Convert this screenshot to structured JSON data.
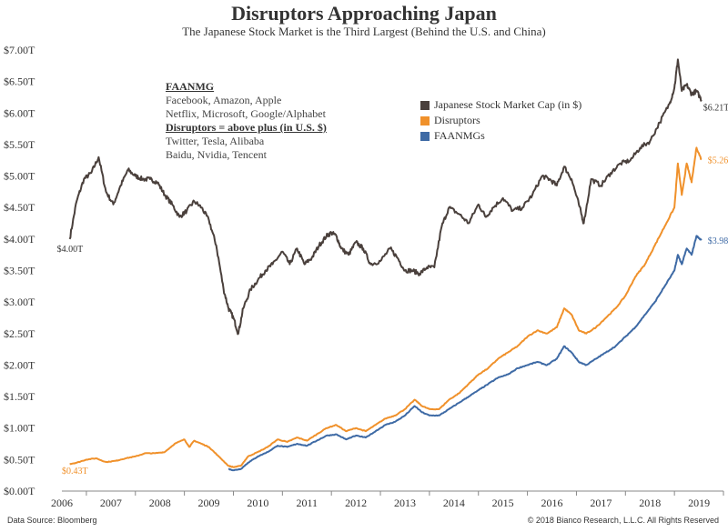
{
  "chart_data": {
    "type": "line",
    "title": "Disruptors Approaching Japan",
    "subtitle": "The Japanese Stock Market is the Third Largest (Behind the U.S. and China)",
    "xlabel": "",
    "ylabel": "",
    "ylim": [
      0,
      7
    ],
    "xlim": [
      2005.5,
      2019
    ],
    "y_ticks": [
      "$0.00T",
      "$0.50T",
      "$1.00T",
      "$1.50T",
      "$2.00T",
      "$2.50T",
      "$3.00T",
      "$3.50T",
      "$4.00T",
      "$4.50T",
      "$5.00T",
      "$5.50T",
      "$6.00T",
      "$6.50T",
      "$7.00T"
    ],
    "x_ticks": [
      "2006",
      "2007",
      "2008",
      "2009",
      "2010",
      "2011",
      "2012",
      "2013",
      "2014",
      "2015",
      "2016",
      "2017",
      "2018",
      "2019"
    ],
    "grid": false,
    "legend_position": "top-right",
    "colors": {
      "japan": "#4a403c",
      "disruptors": "#f0912b",
      "faanmg": "#3e6aa5"
    },
    "series": [
      {
        "name": "Japanese Stock Market Cap (in $)",
        "x": [
          2005.66,
          2005.8,
          2005.95,
          2006.1,
          2006.25,
          2006.4,
          2006.55,
          2006.7,
          2006.85,
          2007.0,
          2007.15,
          2007.3,
          2007.45,
          2007.6,
          2007.75,
          2007.9,
          2008.05,
          2008.2,
          2008.35,
          2008.5,
          2008.65,
          2008.8,
          2008.9,
          2009.0,
          2009.1,
          2009.2,
          2009.35,
          2009.5,
          2009.65,
          2009.8,
          2010.0,
          2010.15,
          2010.3,
          2010.45,
          2010.6,
          2010.75,
          2010.9,
          2011.0,
          2011.1,
          2011.2,
          2011.35,
          2011.5,
          2011.65,
          2011.8,
          2012.0,
          2012.2,
          2012.35,
          2012.5,
          2012.65,
          2012.8,
          2012.95,
          2013.1,
          2013.25,
          2013.4,
          2013.6,
          2013.8,
          2014.0,
          2014.15,
          2014.3,
          2014.5,
          2014.7,
          2014.9,
          2015.1,
          2015.3,
          2015.45,
          2015.6,
          2015.75,
          2015.9,
          2016.05,
          2016.15,
          2016.3,
          2016.5,
          2016.7,
          2016.9,
          2017.1,
          2017.3,
          2017.5,
          2017.7,
          2017.9,
          2018.0,
          2018.07,
          2018.15,
          2018.25,
          2018.35,
          2018.45,
          2018.55
        ],
        "values": [
          4.0,
          4.6,
          4.95,
          5.05,
          5.3,
          4.75,
          4.55,
          4.85,
          5.1,
          5.0,
          4.95,
          4.95,
          4.9,
          4.7,
          4.55,
          4.35,
          4.45,
          4.6,
          4.5,
          4.3,
          3.9,
          3.2,
          2.9,
          2.75,
          2.5,
          2.9,
          3.2,
          3.35,
          3.5,
          3.6,
          3.8,
          3.6,
          3.85,
          3.6,
          3.7,
          3.9,
          4.05,
          4.1,
          4.05,
          3.85,
          3.75,
          3.95,
          3.85,
          3.6,
          3.65,
          3.85,
          3.7,
          3.5,
          3.5,
          3.45,
          3.55,
          3.55,
          4.2,
          4.5,
          4.4,
          4.25,
          4.55,
          4.35,
          4.5,
          4.65,
          4.45,
          4.5,
          4.7,
          5.0,
          4.95,
          4.85,
          5.15,
          4.95,
          4.55,
          4.25,
          4.95,
          4.85,
          5.05,
          5.2,
          5.25,
          5.45,
          5.55,
          5.85,
          6.15,
          6.4,
          6.85,
          6.35,
          6.45,
          6.3,
          6.35,
          6.21
        ]
      },
      {
        "name": "Disruptors",
        "x": [
          2005.66,
          2005.8,
          2006.0,
          2006.2,
          2006.4,
          2006.6,
          2006.8,
          2007.0,
          2007.2,
          2007.4,
          2007.6,
          2007.8,
          2008.0,
          2008.1,
          2008.2,
          2008.35,
          2008.5,
          2008.7,
          2008.9,
          2009.0,
          2009.15,
          2009.3,
          2009.5,
          2009.7,
          2009.9,
          2010.1,
          2010.3,
          2010.5,
          2010.7,
          2010.9,
          2011.1,
          2011.3,
          2011.5,
          2011.7,
          2011.9,
          2012.1,
          2012.3,
          2012.5,
          2012.7,
          2012.85,
          2013.0,
          2013.2,
          2013.4,
          2013.6,
          2013.8,
          2014.0,
          2014.2,
          2014.4,
          2014.6,
          2014.8,
          2015.0,
          2015.2,
          2015.4,
          2015.6,
          2015.75,
          2015.9,
          2016.05,
          2016.2,
          2016.4,
          2016.6,
          2016.8,
          2017.0,
          2017.2,
          2017.4,
          2017.6,
          2017.8,
          2018.0,
          2018.07,
          2018.15,
          2018.25,
          2018.35,
          2018.45,
          2018.55
        ],
        "values": [
          0.43,
          0.45,
          0.5,
          0.52,
          0.46,
          0.48,
          0.52,
          0.55,
          0.6,
          0.6,
          0.62,
          0.75,
          0.82,
          0.7,
          0.8,
          0.75,
          0.7,
          0.55,
          0.4,
          0.38,
          0.4,
          0.55,
          0.62,
          0.7,
          0.82,
          0.78,
          0.85,
          0.8,
          0.9,
          1.0,
          1.05,
          0.95,
          1.0,
          0.95,
          1.05,
          1.15,
          1.2,
          1.3,
          1.45,
          1.35,
          1.3,
          1.3,
          1.45,
          1.55,
          1.7,
          1.85,
          1.95,
          2.1,
          2.2,
          2.3,
          2.45,
          2.55,
          2.5,
          2.6,
          2.9,
          2.8,
          2.55,
          2.5,
          2.6,
          2.75,
          2.9,
          3.1,
          3.4,
          3.6,
          3.9,
          4.2,
          4.5,
          5.2,
          4.7,
          5.2,
          4.9,
          5.45,
          5.26
        ]
      },
      {
        "name": "FAANMGs",
        "x": [
          2008.9,
          2009.0,
          2009.15,
          2009.3,
          2009.5,
          2009.7,
          2009.9,
          2010.1,
          2010.3,
          2010.5,
          2010.7,
          2010.9,
          2011.1,
          2011.3,
          2011.5,
          2011.7,
          2011.9,
          2012.1,
          2012.3,
          2012.5,
          2012.7,
          2012.85,
          2013.0,
          2013.2,
          2013.4,
          2013.6,
          2013.8,
          2014.0,
          2014.2,
          2014.4,
          2014.6,
          2014.8,
          2015.0,
          2015.2,
          2015.4,
          2015.6,
          2015.75,
          2015.9,
          2016.05,
          2016.2,
          2016.4,
          2016.6,
          2016.8,
          2017.0,
          2017.2,
          2017.4,
          2017.6,
          2017.8,
          2018.0,
          2018.07,
          2018.15,
          2018.25,
          2018.35,
          2018.45,
          2018.55
        ],
        "values": [
          0.35,
          0.33,
          0.35,
          0.45,
          0.55,
          0.62,
          0.72,
          0.7,
          0.75,
          0.72,
          0.8,
          0.88,
          0.9,
          0.82,
          0.88,
          0.85,
          0.95,
          1.05,
          1.1,
          1.2,
          1.35,
          1.25,
          1.2,
          1.2,
          1.3,
          1.4,
          1.5,
          1.6,
          1.7,
          1.8,
          1.85,
          1.95,
          2.0,
          2.05,
          2.0,
          2.1,
          2.3,
          2.2,
          2.05,
          2.0,
          2.1,
          2.2,
          2.3,
          2.45,
          2.6,
          2.8,
          3.0,
          3.25,
          3.5,
          3.75,
          3.6,
          3.85,
          3.75,
          4.05,
          3.98
        ]
      }
    ],
    "end_labels": {
      "japan_start": "$4.00T",
      "japan_end": "$6.21T",
      "disruptors_start": "$0.43T",
      "disruptors_end": "$5.26T",
      "faanmg_end": "$3.98T"
    }
  },
  "annotation": {
    "heading1": "FAANMG",
    "line1": "Facebook, Amazon, Apple",
    "line2": "Netflix, Microsoft, Google/Alphabet",
    "heading2": "Disruptors = above plus (in U.S. $)",
    "line3": "Twitter, Tesla, Alibaba",
    "line4": "Baidu, Nvidia, Tencent"
  },
  "legend": {
    "items": [
      "Japanese Stock Market Cap (in $)",
      "Disruptors",
      "FAANMGs"
    ]
  },
  "footer": {
    "source": "Data Source: Bloomberg",
    "copyright": "© 2018 Bianco Research, L.L.C. All Rights Reserved"
  }
}
